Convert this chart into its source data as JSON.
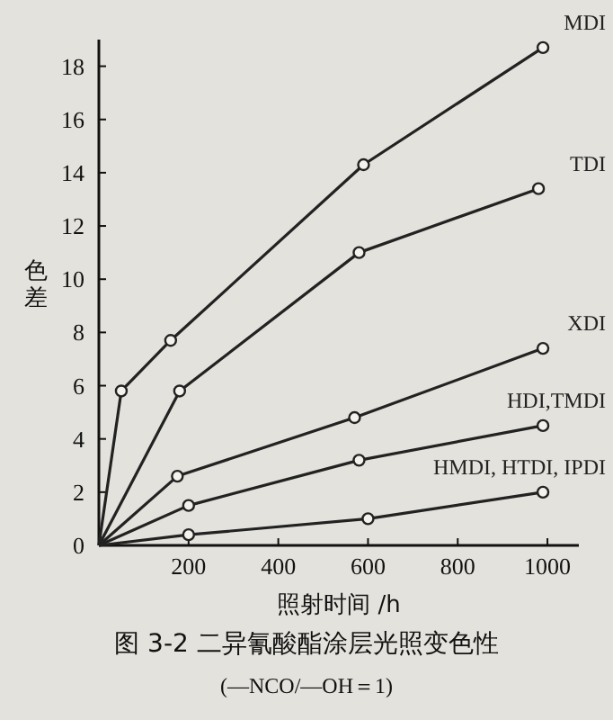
{
  "chart_data": {
    "type": "line",
    "title": "图 3-2  二异氰酸酯涂层光照变色性",
    "subtitle": "(—NCO/—OH＝1)",
    "xlabel": "照射时间 /h",
    "ylabel": "色差",
    "xlim": [
      0,
      1070
    ],
    "ylim": [
      0,
      19
    ],
    "xticks": [
      200,
      400,
      600,
      800,
      1000
    ],
    "yticks": [
      0,
      2,
      4,
      6,
      8,
      10,
      12,
      14,
      16,
      18
    ],
    "marker": "circle",
    "series": [
      {
        "name": "MDI",
        "color": "#222222",
        "x": [
          0,
          50,
          160,
          590,
          990
        ],
        "values": [
          0,
          5.8,
          7.7,
          14.3,
          18.7
        ]
      },
      {
        "name": "TDI",
        "color": "#222222",
        "x": [
          0,
          180,
          580,
          980
        ],
        "values": [
          0,
          5.8,
          11.0,
          13.4
        ]
      },
      {
        "name": "XDI",
        "color": "#222222",
        "x": [
          0,
          175,
          570,
          990
        ],
        "values": [
          0,
          2.6,
          4.8,
          7.4
        ]
      },
      {
        "name": "HDI,TMDI",
        "color": "#222222",
        "x": [
          0,
          200,
          580,
          990
        ],
        "values": [
          0,
          1.5,
          3.2,
          4.5
        ]
      },
      {
        "name": "HMDI, HTDI, IPDI",
        "color": "#222222",
        "x": [
          0,
          200,
          600,
          990
        ],
        "values": [
          0,
          0.4,
          1.0,
          2.0
        ]
      }
    ]
  }
}
